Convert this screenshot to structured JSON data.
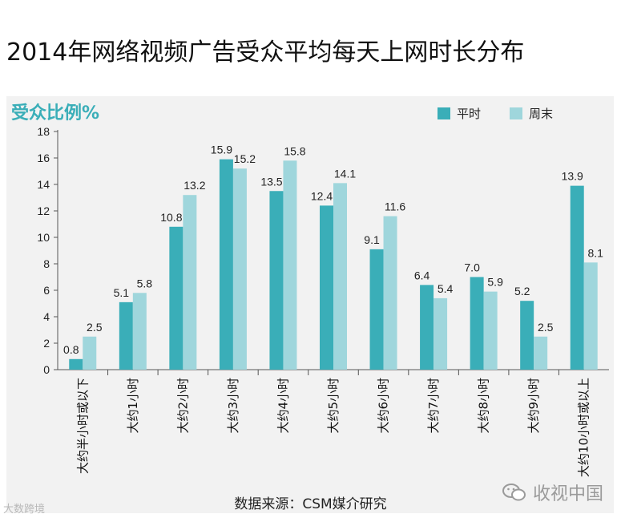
{
  "page_title": "2014年网络视频广告受众平均每天上网时长分布",
  "source_text": "数据来源：CSM媒介研究",
  "watermark_left": "大数跨境",
  "watermark_right": "收视中国",
  "colors": {
    "weekday": "#3aaeb8",
    "weekend": "#9fd6dc",
    "ylabel": "#3aaeb8",
    "panel": "#f2f2f2"
  },
  "chart_data": {
    "type": "bar",
    "ylabel": "受众比例%",
    "ylim": [
      0,
      18
    ],
    "yticks": [
      0,
      2,
      4,
      6,
      8,
      10,
      12,
      14,
      16,
      18
    ],
    "legend_position": "top-right",
    "categories": [
      "大约半小时或以下",
      "大约1小时",
      "大约2小时",
      "大约3小时",
      "大约4小时",
      "大约5小时",
      "大约6小时",
      "大约7小时",
      "大约8小时",
      "大约9小时",
      "大约10小时或以上"
    ],
    "series": [
      {
        "name": "平时",
        "values": [
          0.8,
          5.1,
          10.8,
          15.9,
          13.5,
          12.4,
          9.1,
          6.4,
          7.0,
          5.2,
          13.9
        ],
        "labels": [
          "0.8",
          "5.1",
          "10.8",
          "15.9",
          "13.5",
          "12.4",
          "9.1",
          "6.4",
          "7.0",
          "5.2",
          "13.9"
        ]
      },
      {
        "name": "周末",
        "values": [
          2.5,
          5.8,
          13.2,
          15.2,
          15.8,
          14.1,
          11.6,
          5.4,
          5.9,
          2.5,
          8.1
        ],
        "labels": [
          "2.5",
          "5.8",
          "13.2",
          "15.2",
          "15.8",
          "14.1",
          "11.6",
          "5.4",
          "5.9",
          "2.5",
          "8.1"
        ]
      }
    ]
  }
}
